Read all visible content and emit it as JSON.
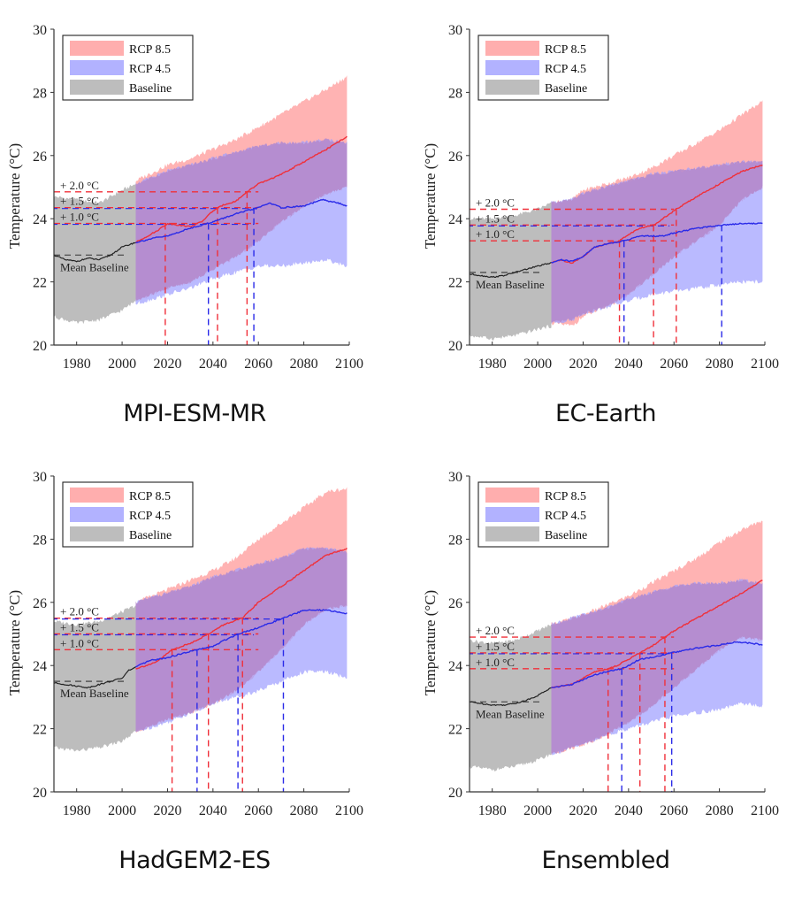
{
  "chart_data": [
    {
      "type": "area",
      "title": "MPI-ESM-MR",
      "xlabel": "",
      "ylabel": "Temperature (°C)",
      "xlim": [
        1970,
        2100
      ],
      "ylim": [
        20,
        30
      ],
      "xticks": [
        1980,
        2000,
        2020,
        2040,
        2060,
        2080,
        2100
      ],
      "yticks": [
        20,
        22,
        24,
        26,
        28,
        30
      ],
      "legend": {
        "placement": "top-left",
        "entries": [
          "RCP 8.5",
          "RCP 4.5",
          "Baseline"
        ]
      },
      "mean_baseline": 22.85,
      "mean_baseline_label": "Mean Baseline",
      "thresholds": [
        {
          "label": "+ 2.0 °C",
          "value": 24.85
        },
        {
          "label": "+ 1.5 °C",
          "value": 24.35
        },
        {
          "label": "+ 1.0 °C",
          "value": 23.85
        }
      ],
      "crossing_years": {
        "rcp85": [
          2019,
          2042,
          2055
        ],
        "rcp45": [
          2038,
          2058
        ]
      },
      "series": [
        {
          "name": "Baseline",
          "kind": "band",
          "x": [
            1970,
            1980,
            1990,
            2000,
            2006
          ],
          "lower": [
            20.9,
            20.7,
            20.8,
            21.1,
            21.4
          ],
          "upper": [
            24.7,
            24.6,
            24.5,
            24.9,
            25.1
          ]
        },
        {
          "name": "Baseline mean",
          "kind": "line",
          "x": [
            1970,
            1975,
            1980,
            1985,
            1990,
            1995,
            2000,
            2006
          ],
          "y": [
            22.85,
            22.7,
            22.65,
            22.75,
            22.7,
            22.85,
            23.1,
            23.25
          ]
        },
        {
          "name": "RCP 8.5",
          "kind": "band",
          "x": [
            2006,
            2020,
            2030,
            2040,
            2050,
            2060,
            2070,
            2080,
            2090,
            2099
          ],
          "lower": [
            21.4,
            21.8,
            22.0,
            22.4,
            22.8,
            23.3,
            23.9,
            24.4,
            24.8,
            25.0
          ],
          "upper": [
            25.2,
            25.7,
            25.9,
            26.2,
            26.5,
            26.9,
            27.3,
            27.7,
            28.1,
            28.5
          ]
        },
        {
          "name": "RCP 4.5",
          "kind": "band",
          "x": [
            2006,
            2020,
            2030,
            2040,
            2050,
            2060,
            2070,
            2080,
            2090,
            2099
          ],
          "lower": [
            21.3,
            21.6,
            21.8,
            22.1,
            22.3,
            22.5,
            22.5,
            22.6,
            22.7,
            22.5
          ],
          "upper": [
            25.1,
            25.5,
            25.7,
            25.9,
            26.1,
            26.3,
            26.4,
            26.4,
            26.5,
            26.4
          ]
        },
        {
          "name": "RCP 8.5 mean",
          "kind": "line",
          "x": [
            2006,
            2015,
            2020,
            2025,
            2030,
            2035,
            2040,
            2045,
            2050,
            2055,
            2060,
            2070,
            2080,
            2090,
            2099
          ],
          "y": [
            23.25,
            23.6,
            23.85,
            23.8,
            23.75,
            23.9,
            24.25,
            24.45,
            24.55,
            24.85,
            25.1,
            25.4,
            25.8,
            26.2,
            26.6
          ]
        },
        {
          "name": "RCP 4.5 mean",
          "kind": "line",
          "x": [
            2006,
            2015,
            2020,
            2030,
            2040,
            2050,
            2060,
            2065,
            2070,
            2080,
            2088,
            2095,
            2099
          ],
          "y": [
            23.25,
            23.4,
            23.45,
            23.7,
            23.9,
            24.15,
            24.35,
            24.5,
            24.35,
            24.4,
            24.6,
            24.5,
            24.4
          ]
        }
      ]
    },
    {
      "type": "area",
      "title": "EC-Earth",
      "xlabel": "",
      "ylabel": "Temperature (°C)",
      "xlim": [
        1970,
        2100
      ],
      "ylim": [
        20,
        30
      ],
      "xticks": [
        1980,
        2000,
        2020,
        2040,
        2060,
        2080,
        2100
      ],
      "yticks": [
        20,
        22,
        24,
        26,
        28,
        30
      ],
      "legend": {
        "placement": "top-left",
        "entries": [
          "RCP 8.5",
          "RCP 4.5",
          "Baseline"
        ]
      },
      "mean_baseline": 22.3,
      "mean_baseline_label": "Mean Baseline",
      "thresholds": [
        {
          "label": "+ 2.0 °C",
          "value": 24.3
        },
        {
          "label": "+ 1.5 °C",
          "value": 23.8
        },
        {
          "label": "+ 1.0 °C",
          "value": 23.3
        }
      ],
      "crossing_years": {
        "rcp85": [
          2036,
          2051,
          2061
        ],
        "rcp45": [
          2038,
          2081
        ]
      },
      "series": [
        {
          "name": "Baseline",
          "kind": "band",
          "x": [
            1970,
            1980,
            1990,
            2000,
            2006
          ],
          "lower": [
            20.3,
            20.2,
            20.3,
            20.5,
            20.6
          ],
          "upper": [
            24.0,
            24.0,
            24.1,
            24.3,
            24.5
          ]
        },
        {
          "name": "Baseline mean",
          "kind": "line",
          "x": [
            1970,
            1975,
            1980,
            1985,
            1990,
            1995,
            2000,
            2006
          ],
          "y": [
            22.25,
            22.2,
            22.15,
            22.2,
            22.3,
            22.4,
            22.5,
            22.6
          ]
        },
        {
          "name": "RCP 8.5",
          "kind": "band",
          "x": [
            2006,
            2015,
            2020,
            2030,
            2040,
            2050,
            2060,
            2070,
            2080,
            2090,
            2099
          ],
          "lower": [
            20.7,
            20.6,
            20.9,
            21.2,
            21.6,
            22.2,
            22.8,
            23.3,
            23.8,
            24.6,
            25.0
          ],
          "upper": [
            24.5,
            24.6,
            24.9,
            25.1,
            25.3,
            25.6,
            26.0,
            26.4,
            26.8,
            27.3,
            27.7
          ]
        },
        {
          "name": "RCP 4.5",
          "kind": "band",
          "x": [
            2006,
            2015,
            2020,
            2030,
            2040,
            2050,
            2060,
            2070,
            2080,
            2090,
            2099
          ],
          "lower": [
            20.7,
            20.8,
            21.0,
            21.2,
            21.4,
            21.6,
            21.7,
            21.8,
            21.9,
            22.0,
            22.0
          ],
          "upper": [
            24.5,
            24.6,
            24.8,
            25.0,
            25.2,
            25.4,
            25.5,
            25.6,
            25.7,
            25.8,
            25.8
          ]
        },
        {
          "name": "RCP 8.5 mean",
          "kind": "line",
          "x": [
            2006,
            2010,
            2015,
            2020,
            2025,
            2030,
            2036,
            2040,
            2045,
            2051,
            2055,
            2061,
            2070,
            2080,
            2090,
            2099
          ],
          "y": [
            22.6,
            22.7,
            22.6,
            22.8,
            23.1,
            23.2,
            23.3,
            23.5,
            23.7,
            23.8,
            24.0,
            24.3,
            24.7,
            25.1,
            25.5,
            25.7
          ]
        },
        {
          "name": "RCP 4.5 mean",
          "kind": "line",
          "x": [
            2006,
            2010,
            2015,
            2020,
            2025,
            2030,
            2038,
            2045,
            2050,
            2055,
            2060,
            2070,
            2081,
            2090,
            2099
          ],
          "y": [
            22.6,
            22.7,
            22.65,
            22.8,
            23.1,
            23.2,
            23.3,
            23.45,
            23.45,
            23.45,
            23.55,
            23.7,
            23.8,
            23.85,
            23.85
          ]
        }
      ]
    },
    {
      "type": "area",
      "title": "HadGEM2-ES",
      "xlabel": "",
      "ylabel": "Temperature (°C)",
      "xlim": [
        1970,
        2100
      ],
      "ylim": [
        20,
        30
      ],
      "xticks": [
        1980,
        2000,
        2020,
        2040,
        2060,
        2080,
        2100
      ],
      "yticks": [
        20,
        22,
        24,
        26,
        28,
        30
      ],
      "legend": {
        "placement": "top-left",
        "entries": [
          "RCP 8.5",
          "RCP 4.5",
          "Baseline"
        ]
      },
      "mean_baseline": 23.5,
      "mean_baseline_label": "Mean Baseline",
      "thresholds": [
        {
          "label": "+ 2.0 °C",
          "value": 25.5
        },
        {
          "label": "+ 1.5 °C",
          "value": 25.0
        },
        {
          "label": "+ 1.0 °C",
          "value": 24.5
        }
      ],
      "crossing_years": {
        "rcp85": [
          2022,
          2038,
          2053
        ],
        "rcp45": [
          2033,
          2051,
          2071
        ]
      },
      "series": [
        {
          "name": "Baseline",
          "kind": "band",
          "x": [
            1970,
            1980,
            1990,
            2000,
            2006
          ],
          "lower": [
            21.4,
            21.3,
            21.4,
            21.6,
            21.9
          ],
          "upper": [
            25.4,
            25.3,
            25.4,
            25.7,
            25.9
          ]
        },
        {
          "name": "Baseline mean",
          "kind": "line",
          "x": [
            1970,
            1975,
            1980,
            1985,
            1990,
            1995,
            2000,
            2003,
            2006
          ],
          "y": [
            23.45,
            23.4,
            23.35,
            23.3,
            23.4,
            23.5,
            23.6,
            23.85,
            23.95
          ]
        },
        {
          "name": "RCP 8.5",
          "kind": "band",
          "x": [
            2006,
            2020,
            2030,
            2040,
            2050,
            2060,
            2070,
            2080,
            2090,
            2099
          ],
          "lower": [
            21.9,
            22.3,
            22.5,
            22.8,
            23.2,
            23.8,
            24.5,
            25.3,
            25.8,
            25.9
          ],
          "upper": [
            26.0,
            26.4,
            26.7,
            27.0,
            27.4,
            28.0,
            28.5,
            29.0,
            29.5,
            29.6
          ]
        },
        {
          "name": "RCP 4.5",
          "kind": "band",
          "x": [
            2006,
            2020,
            2030,
            2040,
            2050,
            2060,
            2070,
            2080,
            2090,
            2099
          ],
          "lower": [
            21.9,
            22.2,
            22.5,
            22.8,
            23.0,
            23.2,
            23.5,
            23.8,
            23.8,
            23.6
          ],
          "upper": [
            26.0,
            26.3,
            26.5,
            26.8,
            27.0,
            27.2,
            27.4,
            27.7,
            27.7,
            27.6
          ]
        },
        {
          "name": "RCP 8.5 mean",
          "kind": "line",
          "x": [
            2006,
            2015,
            2022,
            2030,
            2038,
            2045,
            2053,
            2060,
            2070,
            2080,
            2090,
            2099
          ],
          "y": [
            23.9,
            24.1,
            24.5,
            24.7,
            25.0,
            25.3,
            25.5,
            26.0,
            26.5,
            27.0,
            27.5,
            27.7
          ]
        },
        {
          "name": "RCP 4.5 mean",
          "kind": "line",
          "x": [
            2006,
            2012,
            2020,
            2025,
            2033,
            2040,
            2045,
            2051,
            2060,
            2071,
            2080,
            2090,
            2099
          ],
          "y": [
            23.95,
            24.15,
            24.25,
            24.35,
            24.5,
            24.6,
            24.8,
            25.0,
            25.2,
            25.5,
            25.75,
            25.75,
            25.65
          ]
        }
      ]
    },
    {
      "type": "area",
      "title": "Ensembled",
      "xlabel": "",
      "ylabel": "Temperature (°C)",
      "xlim": [
        1970,
        2100
      ],
      "ylim": [
        20,
        30
      ],
      "xticks": [
        1980,
        2000,
        2020,
        2040,
        2060,
        2080,
        2100
      ],
      "yticks": [
        20,
        22,
        24,
        26,
        28,
        30
      ],
      "legend": {
        "placement": "top-left",
        "entries": [
          "RCP 8.5",
          "RCP 4.5",
          "Baseline"
        ]
      },
      "mean_baseline": 22.85,
      "mean_baseline_label": "Mean Baseline",
      "thresholds": [
        {
          "label": "+ 2.0 °C",
          "value": 24.9
        },
        {
          "label": "+ 1.5 °C",
          "value": 24.4
        },
        {
          "label": "+ 1.0 °C",
          "value": 23.9
        }
      ],
      "crossing_years": {
        "rcp85": [
          2031,
          2045,
          2056
        ],
        "rcp45": [
          2037,
          2059
        ]
      },
      "series": [
        {
          "name": "Baseline",
          "kind": "band",
          "x": [
            1970,
            1980,
            1990,
            2000,
            2006
          ],
          "lower": [
            20.8,
            20.7,
            20.8,
            21.0,
            21.2
          ],
          "upper": [
            24.8,
            24.7,
            24.8,
            25.1,
            25.3
          ]
        },
        {
          "name": "Baseline mean",
          "kind": "line",
          "x": [
            1970,
            1975,
            1980,
            1985,
            1990,
            1995,
            2000,
            2006
          ],
          "y": [
            22.85,
            22.8,
            22.75,
            22.75,
            22.8,
            22.9,
            23.05,
            23.3
          ]
        },
        {
          "name": "RCP 8.5",
          "kind": "band",
          "x": [
            2006,
            2020,
            2030,
            2040,
            2050,
            2060,
            2070,
            2080,
            2090,
            2099
          ],
          "lower": [
            21.2,
            21.5,
            21.8,
            22.2,
            22.7,
            23.3,
            23.9,
            24.5,
            24.9,
            24.8
          ],
          "upper": [
            25.3,
            25.6,
            25.9,
            26.2,
            26.6,
            27.0,
            27.4,
            27.9,
            28.3,
            28.6
          ]
        },
        {
          "name": "RCP 4.5",
          "kind": "band",
          "x": [
            2006,
            2020,
            2030,
            2040,
            2050,
            2060,
            2070,
            2080,
            2090,
            2099
          ],
          "lower": [
            21.2,
            21.5,
            21.8,
            22.0,
            22.2,
            22.4,
            22.5,
            22.6,
            22.8,
            22.7
          ],
          "upper": [
            25.3,
            25.6,
            25.8,
            26.1,
            26.3,
            26.5,
            26.6,
            26.6,
            26.7,
            26.6
          ]
        },
        {
          "name": "RCP 8.5 mean",
          "kind": "line",
          "x": [
            2006,
            2015,
            2020,
            2025,
            2031,
            2035,
            2040,
            2045,
            2050,
            2056,
            2060,
            2070,
            2080,
            2090,
            2099
          ],
          "y": [
            23.3,
            23.4,
            23.6,
            23.8,
            23.9,
            24.0,
            24.2,
            24.4,
            24.6,
            24.9,
            25.1,
            25.5,
            25.9,
            26.3,
            26.7
          ]
        },
        {
          "name": "RCP 4.5 mean",
          "kind": "line",
          "x": [
            2006,
            2015,
            2020,
            2025,
            2030,
            2037,
            2040,
            2045,
            2050,
            2059,
            2070,
            2080,
            2088,
            2095,
            2099
          ],
          "y": [
            23.3,
            23.4,
            23.55,
            23.7,
            23.8,
            23.9,
            24.0,
            24.2,
            24.25,
            24.4,
            24.55,
            24.65,
            24.75,
            24.7,
            24.65
          ]
        }
      ]
    }
  ],
  "panel_titles": [
    "MPI-ESM-MR",
    "EC-Earth",
    "HadGEM2-ES",
    "Ensembled"
  ],
  "colors": {
    "rcp85_band": "#ff9a9a",
    "rcp45_band": "#9f9fff",
    "overlap_band": "#b58bcd",
    "baseline_band": "#bdbdbd",
    "rcp85_line": "#f0303a",
    "rcp45_line": "#2a2ae8",
    "baseline_line": "#222222"
  }
}
